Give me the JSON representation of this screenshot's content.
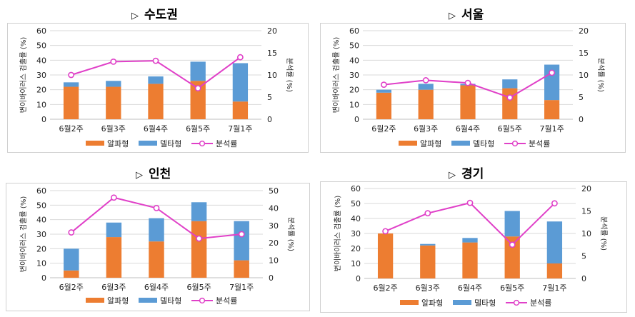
{
  "colors": {
    "alpha": "#ED7D31",
    "delta": "#5B9BD5",
    "line": "#E040C8",
    "marker_fill": "#ffffff",
    "marker_stroke": "#E040C8"
  },
  "legend": {
    "alpha": "알파형",
    "delta": "델타형",
    "line": "분석률"
  },
  "axis_titles": {
    "left": "변이바이러스 검출률 (%)",
    "right": "분석률 (%)"
  },
  "panels": [
    {
      "title": "수도권"
    },
    {
      "title": "서울"
    },
    {
      "title": "인천"
    },
    {
      "title": "경기"
    }
  ],
  "chart_data": [
    {
      "type": "bar",
      "title": "수도권",
      "categories": [
        "6월2주",
        "6월3주",
        "6월4주",
        "6월5주",
        "7월1주"
      ],
      "series": [
        {
          "name": "알파형",
          "kind": "bar-stack",
          "axis": "left",
          "values": [
            22,
            22,
            24,
            26,
            12
          ]
        },
        {
          "name": "델타형",
          "kind": "bar-stack",
          "axis": "left",
          "values": [
            3,
            4,
            5,
            13,
            26
          ]
        },
        {
          "name": "분석률",
          "kind": "line",
          "axis": "right",
          "values": [
            10,
            13,
            13.2,
            7,
            14
          ]
        }
      ],
      "ylabel": "변이바이러스 검출률 (%)",
      "y2label": "분석률 (%)",
      "ylim": [
        0,
        60
      ],
      "yticks": [
        0,
        10,
        20,
        30,
        40,
        50,
        60
      ],
      "y2lim": [
        0,
        20
      ],
      "y2ticks": [
        0,
        5,
        10,
        15,
        20
      ],
      "legend_position": "bottom"
    },
    {
      "type": "bar",
      "title": "서울",
      "categories": [
        "6월2주",
        "6월3주",
        "6월4주",
        "6월5주",
        "7월1주"
      ],
      "series": [
        {
          "name": "알파형",
          "kind": "bar-stack",
          "axis": "left",
          "values": [
            18,
            20,
            23,
            21,
            13
          ]
        },
        {
          "name": "델타형",
          "kind": "bar-stack",
          "axis": "left",
          "values": [
            2,
            4,
            1,
            6,
            24
          ]
        },
        {
          "name": "분석률",
          "kind": "line",
          "axis": "right",
          "values": [
            7.8,
            8.8,
            8.2,
            4.9,
            10.5
          ]
        }
      ],
      "ylabel": "변이바이러스 검출률 (%)",
      "y2label": "분석률 (%)",
      "ylim": [
        0,
        60
      ],
      "yticks": [
        0,
        10,
        20,
        30,
        40,
        50,
        60
      ],
      "y2lim": [
        0,
        20
      ],
      "y2ticks": [
        0,
        5,
        10,
        15,
        20
      ],
      "legend_position": "bottom"
    },
    {
      "type": "bar",
      "title": "인천",
      "categories": [
        "6월2주",
        "6월3주",
        "6월4주",
        "6월5주",
        "7월1주"
      ],
      "series": [
        {
          "name": "알파형",
          "kind": "bar-stack",
          "axis": "left",
          "values": [
            5,
            28,
            25,
            39,
            12
          ]
        },
        {
          "name": "델타형",
          "kind": "bar-stack",
          "axis": "left",
          "values": [
            15,
            10,
            16,
            13,
            27
          ]
        },
        {
          "name": "분석률",
          "kind": "line",
          "axis": "right",
          "values": [
            26,
            46,
            40,
            22.5,
            25
          ]
        }
      ],
      "ylabel": "변이바이러스 검출률 (%)",
      "y2label": "분석률 (%)",
      "ylim": [
        0,
        60
      ],
      "yticks": [
        0,
        10,
        20,
        30,
        40,
        50,
        60
      ],
      "y2lim": [
        0,
        50
      ],
      "y2ticks": [
        0,
        10,
        20,
        30,
        40,
        50
      ],
      "legend_position": "bottom"
    },
    {
      "type": "bar",
      "title": "경기",
      "categories": [
        "6월2주",
        "6월3주",
        "6월4주",
        "6월5주",
        "7월1주"
      ],
      "series": [
        {
          "name": "알파형",
          "kind": "bar-stack",
          "axis": "left",
          "values": [
            30,
            22,
            24,
            28,
            10
          ]
        },
        {
          "name": "델타형",
          "kind": "bar-stack",
          "axis": "left",
          "values": [
            0,
            1,
            3,
            17,
            28
          ]
        },
        {
          "name": "분석률",
          "kind": "line",
          "axis": "right",
          "values": [
            10.5,
            14.5,
            16.8,
            7.5,
            16.7
          ]
        }
      ],
      "ylabel": "변이바이러스 검출률 (%)",
      "y2label": "분석률 (%)",
      "ylim": [
        0,
        60
      ],
      "yticks": [
        0,
        10,
        20,
        30,
        40,
        50,
        60
      ],
      "y2lim": [
        0,
        20
      ],
      "y2ticks": [
        0,
        5,
        10,
        15,
        20
      ],
      "legend_position": "bottom"
    }
  ]
}
